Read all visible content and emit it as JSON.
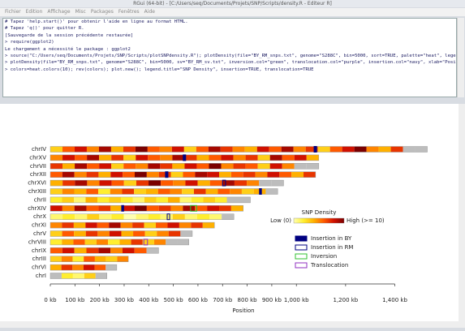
{
  "window": {
    "title": "RGui (64-bit) - [C:/Users/seq/Documents/Projets/SNP/Scripts/density.R - Editeur R]"
  },
  "menu": [
    "Fichier",
    "Edition",
    "Affichage",
    "Misc",
    "Packages",
    "Fenêtres",
    "Aide"
  ],
  "console": {
    "lines": [
      "# Tapez 'help.start()' pour obtenir l'aide en ligne au format HTML.",
      "# Tapez 'q()' pour quitter R.",
      "",
      "[Sauvegarde de la session précédente restaurée]",
      "",
      "> require(ggplot2)",
      "Le chargement a nécessité le package : ggplot2",
      "> source(\"C:/Users/seq/Documents/Projets/SNP/Scripts/plotSNPdensity.R\"); plotDensity(file=\"BY_RM_snps.txt\", genome=\"S288C\", bin=5000, sort=TRUE, palette=\"heat\", legend=TRUE)",
      "> plotDensity(file=\"BY_RM_snps.txt\", genome=\"S288C\", bin=5000, sv=\"BY_RM_sv.txt\", inversion.col=\"green\", translocation.col=\"purple\", insertion.col=\"navy\", xlab=\"Position\")",
      "> colors=heat.colors(10); rev(colors); plot.new(); legend.title=\"SNP Density\", insertion=TRUE, translocation=TRUE"
    ]
  },
  "chart_data": {
    "type": "chromosome-density",
    "xlabel": "Position",
    "xlim": [
      0,
      1550
    ],
    "xticks": [
      {
        "value": 0,
        "label": "0 kb"
      },
      {
        "value": 100,
        "label": "100 kb"
      },
      {
        "value": 200,
        "label": "200 kb"
      },
      {
        "value": 300,
        "label": "300 kb"
      },
      {
        "value": 400,
        "label": "400 kb"
      },
      {
        "value": 500,
        "label": "500 kb"
      },
      {
        "value": 600,
        "label": "600 kb"
      },
      {
        "value": 700,
        "label": "700 kb"
      },
      {
        "value": 800,
        "label": "800 kb"
      },
      {
        "value": 900,
        "label": "900 kb"
      },
      {
        "value": 1000,
        "label": "1,000 kb"
      },
      {
        "value": 1200,
        "label": "1,200 kb"
      },
      {
        "value": 1400,
        "label": "1,400 kb"
      }
    ],
    "missing_color": "#bdbdbd",
    "color_scale": {
      "title": "SNP Density",
      "low": {
        "value": 0,
        "label": "Low (0)"
      },
      "high": {
        "value": 10,
        "label": "High (>= 10)"
      },
      "colors": [
        "#ffffb0",
        "#ffee30",
        "#ffb000",
        "#ff5a00",
        "#d01000",
        "#7a0000"
      ]
    },
    "chromosomes": [
      {
        "name": "chrIV",
        "length": 1532,
        "density": [
          3,
          6,
          8,
          5,
          9,
          4,
          7,
          10,
          6,
          5,
          8,
          3,
          6,
          9,
          7,
          5,
          4,
          8,
          6,
          9,
          5,
          7,
          3,
          6,
          8,
          10,
          5,
          4,
          7,
          null,
          null
        ]
      },
      {
        "name": "chrXV",
        "length": 1091,
        "density": [
          5,
          8,
          6,
          9,
          4,
          7,
          3,
          8,
          6,
          5,
          9,
          7,
          4,
          6,
          8,
          5,
          7,
          3,
          9,
          6,
          8,
          4
        ]
      },
      {
        "name": "chrVII",
        "length": 1091,
        "density": [
          7,
          4,
          9,
          6,
          8,
          3,
          6,
          5,
          9,
          7,
          4,
          8,
          6,
          10,
          5,
          7,
          6,
          3,
          8,
          5,
          null,
          null
        ]
      },
      {
        "name": "chrXII",
        "length": 1078,
        "density": [
          6,
          9,
          5,
          7,
          4,
          8,
          6,
          10,
          5,
          7,
          3,
          6,
          9,
          8,
          4,
          6,
          7,
          5,
          8,
          6,
          4,
          7
        ]
      },
      {
        "name": "chrXVI",
        "length": 948,
        "density": [
          4,
          7,
          9,
          5,
          8,
          6,
          3,
          7,
          10,
          6,
          5,
          8,
          4,
          6,
          9,
          7,
          5,
          null,
          null
        ]
      },
      {
        "name": "chrXIII",
        "length": 924,
        "density": [
          3,
          5,
          4,
          6,
          2,
          5,
          7,
          3,
          4,
          6,
          5,
          3,
          7,
          4,
          6,
          5,
          3,
          4,
          null
        ]
      },
      {
        "name": "chrII",
        "length": 813,
        "density": [
          2,
          3,
          1,
          4,
          2,
          3,
          2,
          1,
          3,
          2,
          4,
          1,
          2,
          3,
          2,
          null,
          null
        ]
      },
      {
        "name": "chrXIV",
        "length": 784,
        "density": [
          8,
          5,
          9,
          6,
          7,
          4,
          8,
          10,
          6,
          7,
          5,
          9,
          6,
          8,
          7,
          4
        ]
      },
      {
        "name": "chrX",
        "length": 746,
        "density": [
          1,
          2,
          1,
          3,
          1,
          2,
          0,
          1,
          2,
          1,
          3,
          1,
          2,
          1,
          null
        ]
      },
      {
        "name": "chrXI",
        "length": 667,
        "density": [
          5,
          7,
          4,
          8,
          6,
          9,
          5,
          7,
          3,
          6,
          8,
          5,
          7,
          4
        ]
      },
      {
        "name": "chrV",
        "length": 577,
        "density": [
          3,
          6,
          4,
          7,
          5,
          8,
          4,
          6,
          3,
          5,
          7,
          null
        ]
      },
      {
        "name": "chrVIII",
        "length": 563,
        "density": [
          2,
          4,
          6,
          3,
          5,
          2,
          4,
          7,
          3,
          5,
          null,
          null
        ]
      },
      {
        "name": "chrIX",
        "length": 440,
        "density": [
          6,
          8,
          4,
          7,
          9,
          5,
          8,
          6,
          null
        ]
      },
      {
        "name": "chrIII",
        "length": 317,
        "density": [
          3,
          5,
          2,
          6,
          4,
          3,
          5
        ]
      },
      {
        "name": "chrVI",
        "length": 270,
        "density": [
          4,
          7,
          5,
          8,
          6,
          null
        ]
      },
      {
        "name": "chrI",
        "length": 230,
        "density": [
          null,
          2,
          1,
          3,
          null
        ]
      }
    ],
    "feature_types": [
      {
        "name": "Insertion in BY",
        "color": "#000080",
        "filled": true,
        "items": [
          {
            "chrom": "chrIV",
            "start": 1072,
            "end": 1082
          },
          {
            "chrom": "chrXV",
            "start": 540,
            "end": 550
          },
          {
            "chrom": "chrXII",
            "start": 468,
            "end": 478
          },
          {
            "chrom": "chrXIII",
            "start": 850,
            "end": 858
          },
          {
            "chrom": "chrXIV",
            "start": 290,
            "end": 298
          }
        ]
      },
      {
        "name": "Insertion in RM",
        "color": "#000080",
        "filled": false,
        "items": [
          {
            "chrom": "chrXVI",
            "start": 700,
            "end": 712
          },
          {
            "chrom": "chrX",
            "start": 475,
            "end": 485
          }
        ]
      },
      {
        "name": "Inversion",
        "color": "#30c030",
        "filled": false,
        "items": [
          {
            "chrom": "chrXIV",
            "start": 570,
            "end": 595
          }
        ]
      },
      {
        "name": "Translocation",
        "color": "#9030c0",
        "filled": false,
        "items": [
          {
            "chrom": "chrVIII",
            "start": 380,
            "end": 395
          }
        ]
      }
    ]
  }
}
